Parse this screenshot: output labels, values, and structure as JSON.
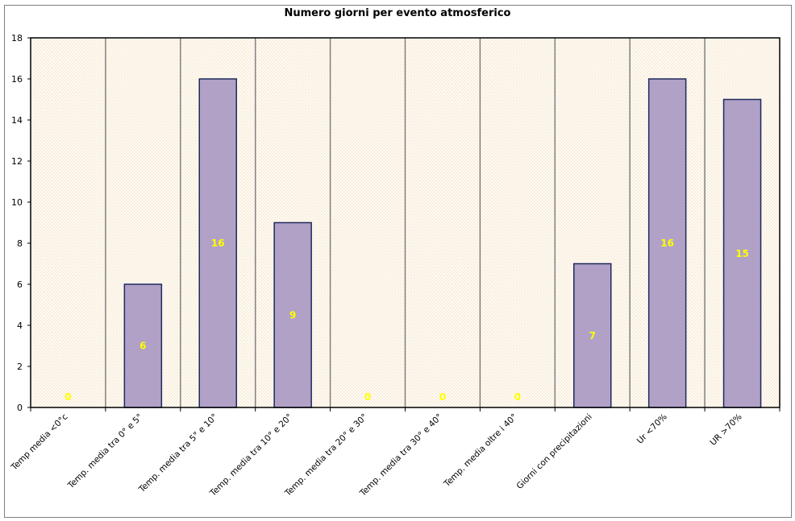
{
  "chart_data": {
    "type": "bar",
    "title": "Numero giorni per evento atmosferico",
    "xlabel": "",
    "ylabel": "",
    "categories": [
      "Temp media <0°c",
      "Temp. media tra 0° e 5°",
      "Temp. media tra 5° e 10°",
      "Temp. media tra 10° e 20°",
      "Temp. media tra 20° e 30°",
      "Temp. media tra 30° e 40°",
      "Temp. media oltre i 40°",
      "Giorni con precipitazioni",
      "Ur <70%",
      "UR >70%"
    ],
    "values": [
      0,
      6,
      16,
      9,
      0,
      0,
      0,
      7,
      16,
      15
    ],
    "data_labels": [
      "0",
      "6",
      "16",
      "9",
      "0",
      "0",
      "0",
      "7",
      "16",
      "15"
    ],
    "yticks": [
      "0",
      "2",
      "4",
      "6",
      "8",
      "10",
      "12",
      "14",
      "16",
      "18"
    ],
    "ylim": [
      0,
      18
    ],
    "grid": "vertical separators between categories",
    "legend": "none",
    "colors": {
      "bar_fill": "#b1a1c7",
      "bar_stroke": "#1f2a5c",
      "plot_background": "#fdf7ee",
      "data_label": "#ffff00",
      "separator": "#808080"
    }
  }
}
